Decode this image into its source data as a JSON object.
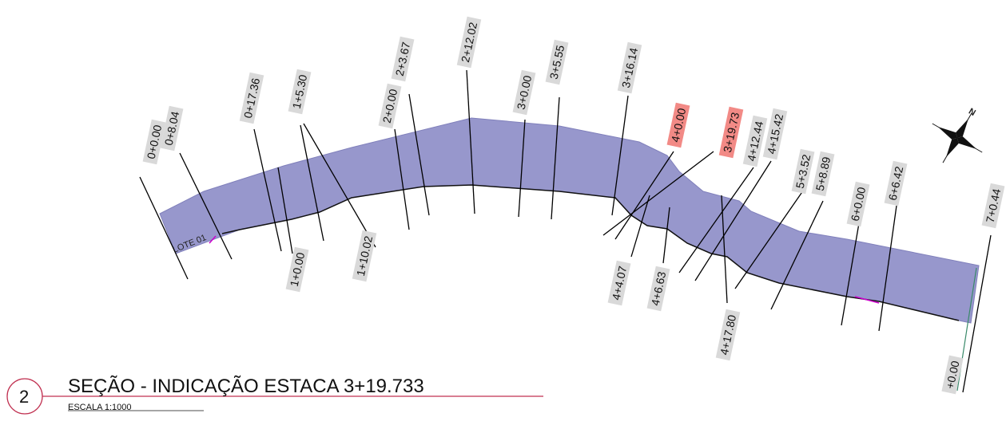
{
  "colors": {
    "band_fill": "#9797cc",
    "band_stroke": "#8080bb",
    "label_bg": "#d9d9d9",
    "label_highlight": "#f28a86",
    "title_circle": "#c03050",
    "accent_magenta": "#cc00cc"
  },
  "lot_label": "LOTE 01",
  "stations": [
    {
      "label": "0+0.00",
      "highlight": false
    },
    {
      "label": "0+8.04",
      "highlight": false
    },
    {
      "label": "0+17.36",
      "highlight": false
    },
    {
      "label": "1+0.00",
      "highlight": false
    },
    {
      "label": "1+5.30",
      "highlight": false
    },
    {
      "label": "1+10.02",
      "highlight": false
    },
    {
      "label": "2+0.00",
      "highlight": false
    },
    {
      "label": "2+3.67",
      "highlight": false
    },
    {
      "label": "2+12.02",
      "highlight": false
    },
    {
      "label": "3+0.00",
      "highlight": false
    },
    {
      "label": "3+5.55",
      "highlight": false
    },
    {
      "label": "3+16.14",
      "highlight": false
    },
    {
      "label": "4+0.00",
      "highlight": true
    },
    {
      "label": "3+19.73",
      "highlight": true
    },
    {
      "label": "4+4.07",
      "highlight": false
    },
    {
      "label": "4+6.63",
      "highlight": false
    },
    {
      "label": "4+12.44",
      "highlight": false
    },
    {
      "label": "4+15.42",
      "highlight": false
    },
    {
      "label": "4+17.80",
      "highlight": false
    },
    {
      "label": "5+3.52",
      "highlight": false
    },
    {
      "label": "5+8.89",
      "highlight": false
    },
    {
      "label": "6+0.00",
      "highlight": false
    },
    {
      "label": "6+6.42",
      "highlight": false
    },
    {
      "label": "7+0.44",
      "highlight": false
    },
    {
      "label": "+0.00",
      "highlight": false
    }
  ],
  "title": {
    "number": "2",
    "text": "SEÇÃO - INDICAÇÃO ESTACA 3+19.733",
    "scale": "ESCALA 1:1000"
  },
  "north_arrow": {
    "icon": "north-arrow-icon",
    "letter": "N"
  }
}
